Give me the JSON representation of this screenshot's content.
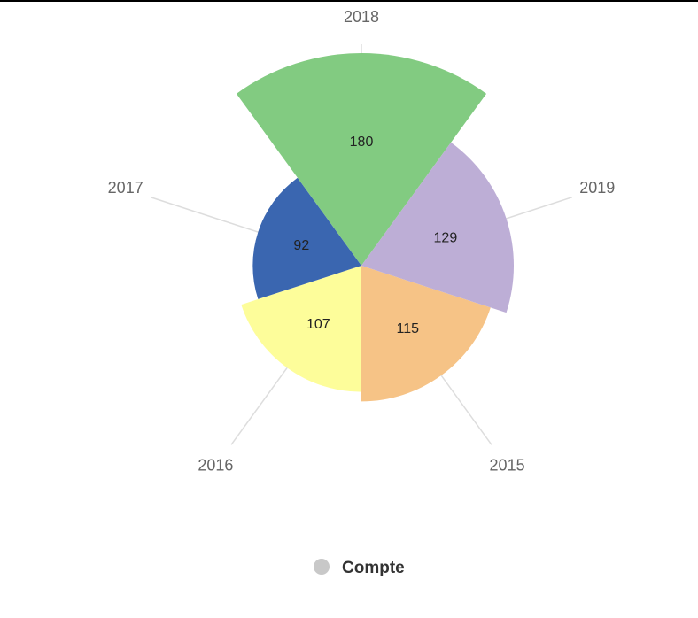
{
  "chart_data": {
    "type": "polar_area",
    "categories": [
      "2015",
      "2016",
      "2017",
      "2018",
      "2019"
    ],
    "series": [
      {
        "name": "Compte",
        "color": "#c8c8c8",
        "colors": [
          "#f6c386",
          "#fdfd9a",
          "#3a66b0",
          "#82cb81",
          "#bdaed6"
        ],
        "values": [
          115,
          107,
          92,
          180,
          129
        ]
      }
    ]
  }
}
